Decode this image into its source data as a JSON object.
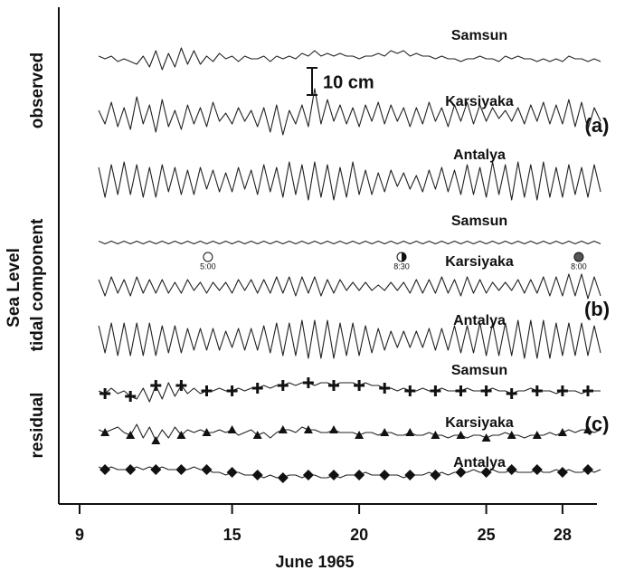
{
  "chart_data": {
    "type": "line",
    "ylabel": "Sea Level",
    "xlabel": "June 1965",
    "xlim": [
      9,
      29.6
    ],
    "xticks": [
      9,
      15,
      20,
      25,
      28
    ],
    "scale_bar": {
      "value": 10,
      "label": "10 cm"
    },
    "x": [
      9.75,
      10,
      10.25,
      10.5,
      10.75,
      11,
      11.25,
      11.5,
      11.75,
      12,
      12.25,
      12.5,
      12.75,
      13,
      13.25,
      13.5,
      13.75,
      14,
      14.25,
      14.5,
      14.75,
      15,
      15.25,
      15.5,
      15.75,
      16,
      16.25,
      16.5,
      16.75,
      17,
      17.25,
      17.5,
      17.75,
      18,
      18.25,
      18.5,
      18.75,
      19,
      19.25,
      19.5,
      19.75,
      20,
      20.25,
      20.5,
      20.75,
      21,
      21.25,
      21.5,
      21.75,
      22,
      22.25,
      22.5,
      22.75,
      23,
      23.25,
      23.5,
      23.75,
      24,
      24.25,
      24.5,
      24.75,
      25,
      25.25,
      25.5,
      25.75,
      26,
      26.25,
      26.5,
      26.75,
      27,
      27.25,
      27.5,
      27.75,
      28,
      28.25,
      28.5,
      28.75,
      29,
      29.25,
      29.5
    ],
    "panels": [
      {
        "label": "observed",
        "tag": "(a)",
        "series": [
          {
            "name": "Samsun",
            "color": "#222222",
            "values": [
              1,
              0,
              1,
              -1,
              0,
              -1,
              -2,
              1,
              -3,
              3,
              -4,
              2,
              -3,
              4,
              -2,
              3,
              -2,
              1,
              -1,
              2,
              0,
              1,
              -1,
              1,
              0,
              0,
              1,
              -1,
              1,
              0,
              1,
              0,
              2,
              1,
              3,
              1,
              2,
              1,
              2,
              1,
              1,
              0,
              1,
              1,
              2,
              1,
              3,
              2,
              3,
              1,
              2,
              1,
              1,
              0,
              1,
              0,
              0,
              -1,
              0,
              0,
              1,
              0,
              0,
              -1,
              1,
              0,
              1,
              0,
              0,
              -1,
              0,
              -1,
              0,
              -1,
              1,
              0,
              0,
              -1,
              0,
              -1
            ]
          },
          {
            "name": "Karsiyaka",
            "color": "#222222",
            "values": [
              2,
              -3,
              5,
              -4,
              3,
              -5,
              7,
              -3,
              4,
              -6,
              6,
              -4,
              2,
              -5,
              4,
              -3,
              3,
              -4,
              5,
              -2,
              1,
              -3,
              3,
              -2,
              2,
              -4,
              3,
              -6,
              4,
              -7,
              2,
              -3,
              4,
              -4,
              10,
              -3,
              6,
              -2,
              4,
              -3,
              3,
              -4,
              4,
              -2,
              5,
              -3,
              4,
              -2,
              3,
              -4,
              3,
              -3,
              5,
              -2,
              3,
              -4,
              4,
              -2,
              5,
              -3,
              4,
              -2,
              3,
              -1,
              2,
              -2,
              3,
              -3,
              4,
              -2,
              5,
              -3,
              4,
              -3,
              6,
              -4,
              5,
              -5,
              3,
              -2
            ]
          },
          {
            "name": "Antalya",
            "color": "#222222",
            "values": [
              5,
              -6,
              6,
              -5,
              7,
              -5,
              6,
              -6,
              5,
              -6,
              6,
              -4,
              5,
              -5,
              4,
              -5,
              5,
              -3,
              4,
              -4,
              3,
              -4,
              5,
              -3,
              4,
              -5,
              6,
              -4,
              5,
              -6,
              7,
              -5,
              6,
              -7,
              7,
              -6,
              6,
              -7,
              5,
              -6,
              7,
              -5,
              4,
              -5,
              3,
              -4,
              4,
              -2,
              3,
              -3,
              2,
              -4,
              4,
              -3,
              5,
              -4,
              4,
              -5,
              6,
              -5,
              5,
              -6,
              7,
              -5,
              6,
              -7,
              7,
              -6,
              6,
              -7,
              7,
              -6,
              5,
              -6,
              6,
              -5,
              5,
              -6,
              6,
              -4
            ]
          }
        ]
      },
      {
        "label": "tidal component",
        "tag": "(b)",
        "series": [
          {
            "name": "Samsun",
            "color": "#222222",
            "values": [
              0.5,
              -0.5,
              0.5,
              -0.5,
              0.5,
              -0.5,
              0.5,
              -0.5,
              0.5,
              -0.5,
              0.5,
              -0.5,
              0.5,
              -0.5,
              0.5,
              -0.5,
              0.5,
              -0.5,
              0.5,
              -0.5,
              0.5,
              -0.5,
              0.5,
              -0.5,
              0.5,
              -0.5,
              0.5,
              -0.5,
              0.5,
              -0.5,
              0.5,
              -0.5,
              0.5,
              -0.5,
              0.5,
              -0.5,
              0.5,
              -0.5,
              0.5,
              -0.5,
              0.5,
              -0.5,
              0.5,
              -0.5,
              0.5,
              -0.5,
              0.5,
              -0.5,
              0.5,
              -0.5,
              0.5,
              -0.5,
              0.5,
              -0.5,
              0.5,
              -0.5,
              0.5,
              -0.5,
              0.5,
              -0.5,
              0.5,
              -0.5,
              0.5,
              -0.5,
              0.5,
              -0.5,
              0.5,
              -0.5,
              0.5,
              -0.5,
              0.5,
              -0.5,
              0.5,
              -0.5,
              0.5,
              -0.5,
              0.5,
              -0.5,
              0.5,
              -0.5
            ]
          },
          {
            "name": "Karsiyaka",
            "color": "#222222",
            "values": [
              3,
              -3,
              4,
              -2,
              3,
              -3,
              4,
              -2,
              3,
              -2,
              3,
              -2,
              2,
              -2,
              3,
              -1,
              2,
              -2,
              2,
              -1,
              2,
              -2,
              3,
              -1,
              3,
              -2,
              3,
              -2,
              4,
              -2,
              4,
              -3,
              4,
              -2,
              4,
              -3,
              3,
              -2,
              3,
              -1,
              2,
              -1,
              2,
              -1,
              1,
              -1,
              2,
              -1,
              2,
              -2,
              3,
              -2,
              3,
              -2,
              4,
              -2,
              3,
              -3,
              4,
              -2,
              3,
              -2,
              2,
              -1,
              2,
              -1,
              3,
              -2,
              3,
              -2,
              4,
              -3,
              4,
              -3,
              5,
              -3,
              5,
              -4,
              4,
              -3
            ]
          },
          {
            "name": "Antalya",
            "color": "#222222",
            "values": [
              5,
              -5,
              6,
              -6,
              6,
              -6,
              6,
              -6,
              6,
              -6,
              5,
              -5,
              5,
              -5,
              4,
              -4,
              4,
              -4,
              4,
              -4,
              3,
              -3,
              4,
              -4,
              4,
              -4,
              5,
              -5,
              6,
              -6,
              6,
              -6,
              7,
              -7,
              7,
              -7,
              7,
              -7,
              6,
              -6,
              6,
              -6,
              5,
              -5,
              4,
              -4,
              3,
              -3,
              3,
              -3,
              3,
              -3,
              4,
              -4,
              4,
              -4,
              5,
              -5,
              5,
              -5,
              6,
              -6,
              6,
              -6,
              6,
              -6,
              7,
              -7,
              7,
              -7,
              7,
              -7,
              6,
              -6,
              6,
              -6,
              6,
              -6,
              5,
              -5
            ]
          }
        ]
      },
      {
        "label": "residual",
        "tag": "(c)",
        "series": [
          {
            "name": "Samsun",
            "color": "#222222",
            "marker": "plus",
            "values": [
              0,
              -1,
              1,
              -1,
              0,
              -2,
              -3,
              1,
              -4,
              2,
              -3,
              3,
              -2,
              2,
              -1,
              1,
              -1,
              0,
              0,
              1,
              0,
              0,
              1,
              0,
              1,
              1,
              2,
              1,
              2,
              2,
              3,
              2,
              3,
              3,
              2,
              3,
              3,
              2,
              3,
              3,
              3,
              2,
              3,
              2,
              2,
              1,
              1,
              0,
              1,
              0,
              0,
              1,
              0,
              0,
              1,
              0,
              0,
              0,
              1,
              0,
              0,
              0,
              1,
              0,
              0,
              -1,
              0,
              0,
              1,
              0,
              0,
              0,
              -1,
              0,
              0,
              0,
              -1,
              0,
              0,
              0
            ]
          },
          {
            "name": "Karsiyaka",
            "color": "#222222",
            "marker": "triangle",
            "values": [
              1,
              0,
              1,
              2,
              0,
              -1,
              3,
              -2,
              2,
              -3,
              1,
              -2,
              2,
              -1,
              1,
              0,
              1,
              0,
              0,
              1,
              0,
              1,
              -1,
              0,
              1,
              -1,
              0,
              -2,
              0,
              1,
              1,
              0,
              2,
              1,
              1,
              0,
              0,
              1,
              0,
              0,
              0,
              -1,
              0,
              0,
              -1,
              0,
              0,
              -1,
              -1,
              0,
              -1,
              -1,
              0,
              -1,
              -1,
              -2,
              -1,
              -1,
              -2,
              -1,
              -1,
              -2,
              -1,
              -1,
              0,
              -1,
              -1,
              -2,
              -1,
              -1,
              -1,
              0,
              -1,
              0,
              1,
              0,
              1,
              1,
              0,
              1
            ]
          },
          {
            "name": "Antalya",
            "color": "#222222",
            "marker": "diamond",
            "values": [
              2,
              1,
              2,
              1,
              1,
              1,
              2,
              1,
              2,
              1,
              2,
              1,
              1,
              1,
              1,
              2,
              1,
              1,
              0,
              0,
              -1,
              0,
              0,
              -1,
              -1,
              -1,
              -2,
              -1,
              -2,
              -2,
              -1,
              -1,
              -2,
              -1,
              -1,
              -2,
              -2,
              -1,
              -2,
              -1,
              -1,
              -1,
              0,
              -1,
              -1,
              -1,
              -1,
              -1,
              -2,
              -1,
              -1,
              -1,
              0,
              -1,
              0,
              -1,
              0,
              0,
              0,
              1,
              0,
              0,
              1,
              0,
              0,
              1,
              0,
              0,
              0,
              1,
              0,
              0,
              1,
              0,
              1,
              0,
              0,
              1,
              0,
              1
            ]
          }
        ]
      }
    ],
    "annotations": [
      {
        "x": 14.05,
        "label": "5:00",
        "phase": "full"
      },
      {
        "x": 21.67,
        "label": "8:30",
        "phase": "half"
      },
      {
        "x": 28.64,
        "label": "8:00",
        "phase": "dark"
      }
    ]
  }
}
